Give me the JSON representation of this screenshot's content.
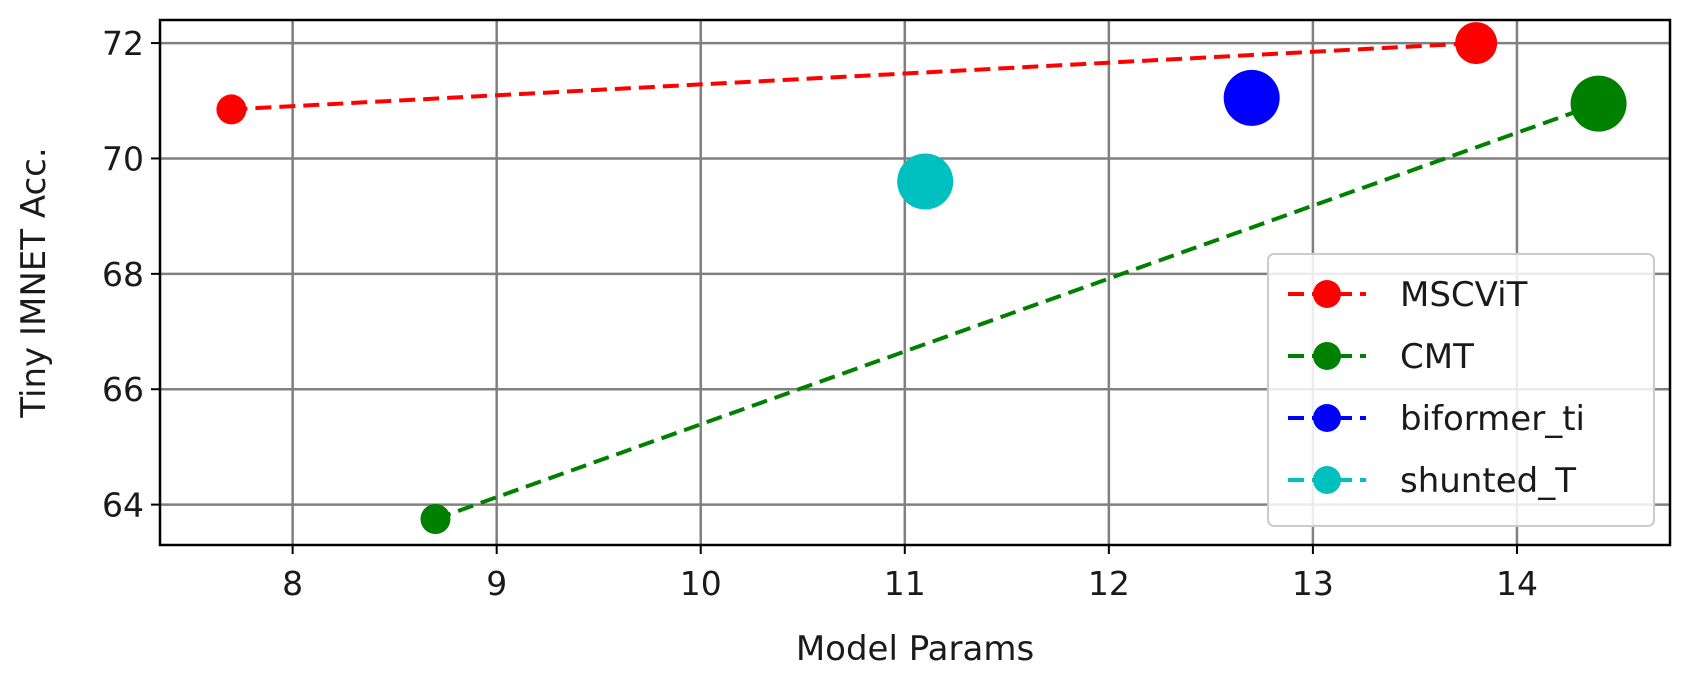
{
  "chart_data": {
    "type": "scatter",
    "xlabel": "Model Params",
    "ylabel": "Tiny IMNET Acc.",
    "xlim": [
      7.35,
      14.75
    ],
    "ylim": [
      63.3,
      72.4
    ],
    "xticks": [
      8,
      9,
      10,
      11,
      12,
      13,
      14
    ],
    "yticks": [
      64,
      66,
      68,
      70,
      72
    ],
    "grid": true,
    "legend_position": "lower-right",
    "series": [
      {
        "name": "MSCViT",
        "color": "#ff0000",
        "line": "dashed",
        "points": [
          {
            "x": 7.7,
            "y": 70.85,
            "size": "small"
          },
          {
            "x": 13.8,
            "y": 72.0,
            "size": "medium"
          }
        ]
      },
      {
        "name": "CMT",
        "color": "#008000",
        "line": "dashed",
        "points": [
          {
            "x": 8.7,
            "y": 63.75,
            "size": "small"
          },
          {
            "x": 14.4,
            "y": 70.95,
            "size": "large"
          }
        ]
      },
      {
        "name": "biformer_ti",
        "color": "#0000ff",
        "line": "none",
        "points": [
          {
            "x": 12.7,
            "y": 71.05,
            "size": "large"
          }
        ]
      },
      {
        "name": "shunted_T",
        "color": "#00bfbf",
        "line": "none",
        "points": [
          {
            "x": 11.1,
            "y": 69.6,
            "size": "large"
          }
        ]
      }
    ]
  }
}
